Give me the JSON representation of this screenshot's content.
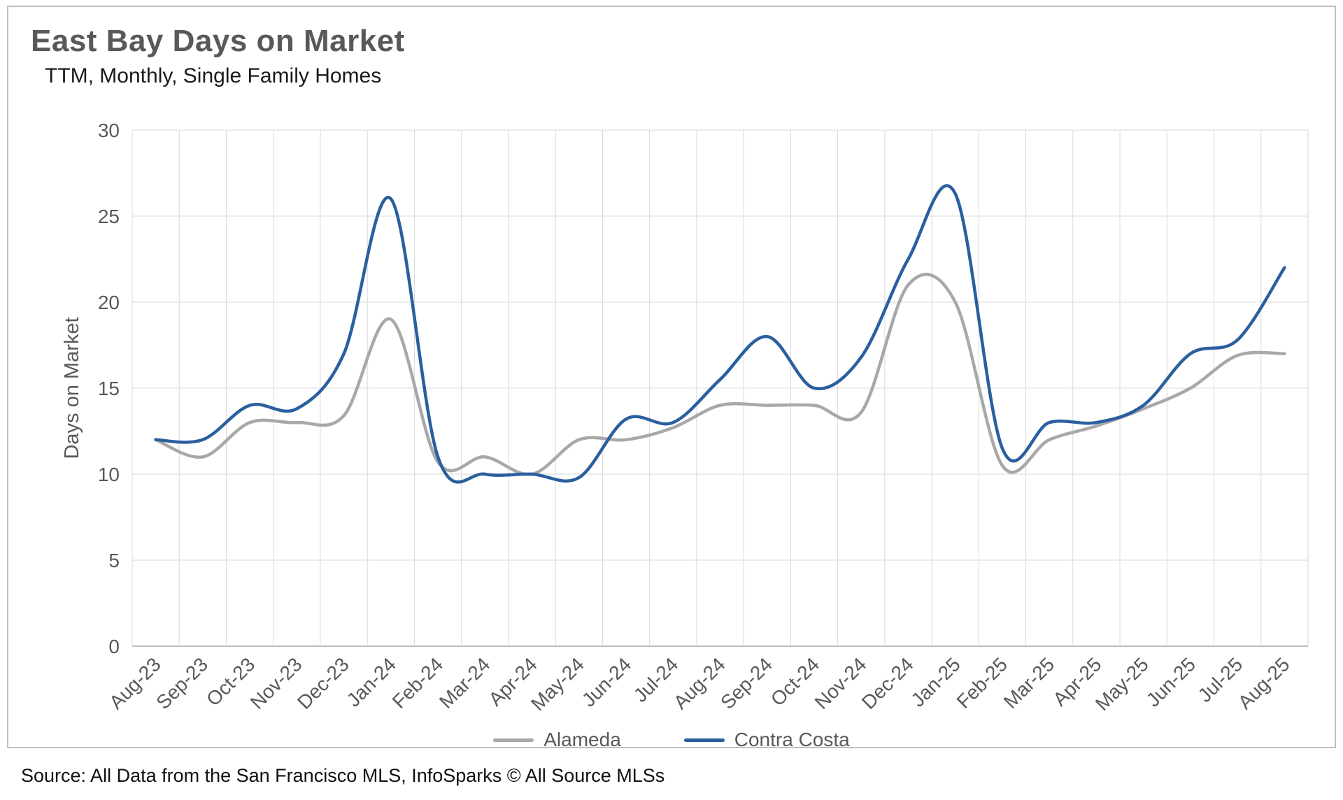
{
  "page": {
    "title": "East Bay Days on Market",
    "subtitle": "TTM, Monthly, Single Family Homes",
    "source_note": "Source: All Data from the San Francisco MLS, InfoSparks © All Source MLSs"
  },
  "chart_data": {
    "type": "line",
    "title": "East Bay Days on Market",
    "subtitle": "TTM, Monthly, Single Family Homes",
    "xlabel": "",
    "ylabel": "Days on Market",
    "ylim": [
      0,
      30
    ],
    "yticks": [
      0,
      5,
      10,
      15,
      20,
      25,
      30
    ],
    "grid": true,
    "smooth": true,
    "legend_position": "bottom",
    "categories": [
      "Aug-23",
      "Sep-23",
      "Oct-23",
      "Nov-23",
      "Dec-23",
      "Jan-24",
      "Feb-24",
      "Mar-24",
      "Apr-24",
      "May-24",
      "Jun-24",
      "Jul-24",
      "Aug-24",
      "Sep-24",
      "Oct-24",
      "Nov-24",
      "Dec-24",
      "Jan-25",
      "Feb-25",
      "Mar-25",
      "Apr-25",
      "May-25",
      "Jun-25",
      "Jul-25",
      "Aug-25"
    ],
    "series": [
      {
        "name": "Alameda",
        "color": "#a8a8a8",
        "values": [
          12,
          11,
          13,
          13,
          13.4,
          19,
          10.7,
          11,
          10,
          12,
          12,
          12.7,
          14,
          14,
          14,
          13.6,
          21,
          20,
          10.5,
          12,
          12.8,
          13.8,
          15,
          16.9,
          17
        ]
      },
      {
        "name": "Contra Costa",
        "color": "#2a5f9f",
        "values": [
          12,
          12,
          14,
          13.8,
          17,
          26,
          11,
          10,
          10,
          9.8,
          13.2,
          13,
          15.5,
          18,
          15,
          16.8,
          22.5,
          26.3,
          11.5,
          13,
          13,
          14,
          17,
          17.8,
          22
        ]
      }
    ]
  }
}
